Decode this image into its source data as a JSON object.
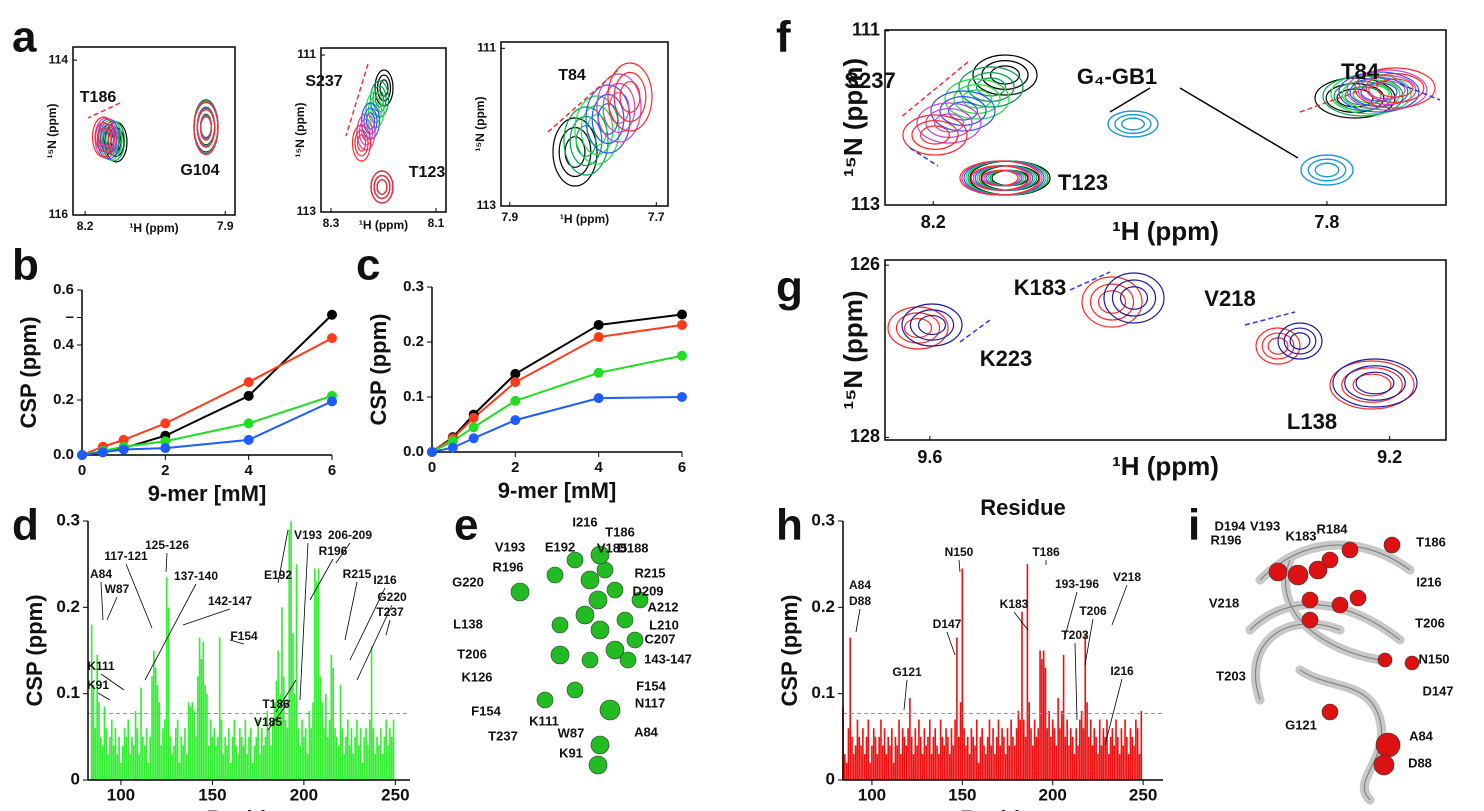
{
  "chart_data": [
    {
      "type": "spectrum",
      "panel_label": "a",
      "xlabel": "¹H (ppm)",
      "ylabel": "¹⁵N (ppm)",
      "xlim": [
        8.226,
        7.879
      ],
      "ylim": [
        116,
        113.83
      ],
      "xticks": [
        8.2,
        7.9
      ],
      "yticks": [
        114,
        116
      ],
      "annotations": [
        "T186",
        "G104"
      ]
    },
    {
      "type": "spectrum",
      "xlabel": "¹H (ppm)",
      "ylabel": "¹⁵N (ppm)",
      "xlim": [
        8.319,
        8.081
      ],
      "ylim": [
        113,
        110.91
      ],
      "xticks": [
        8.3,
        8.1
      ],
      "yticks": [
        111,
        113
      ],
      "annotations": [
        "S237",
        "T123"
      ]
    },
    {
      "type": "spectrum",
      "xlabel": "¹H (ppm)",
      "ylabel": "¹⁵N (ppm)",
      "xlim": [
        7.912,
        7.684
      ],
      "ylim": [
        113,
        110.92
      ],
      "xticks": [
        7.9,
        7.7
      ],
      "yticks": [
        111,
        113
      ],
      "annotations": [
        "T84"
      ]
    },
    {
      "type": "scatter",
      "panel_label": "b",
      "xlabel": "9-mer [mM]",
      "ylabel": "CSP (ppm)",
      "x": [
        0,
        0.5,
        1,
        2,
        4,
        6
      ],
      "xlim": [
        0,
        6
      ],
      "ylim": [
        0,
        0.6
      ],
      "xticks": [
        0,
        2,
        4,
        6
      ],
      "yticks": [
        {
          "value": 0,
          "label": "0.0"
        },
        0.2,
        0.4,
        {
          "value": 0.5,
          "label": "–"
        },
        0.6
      ],
      "series": [
        {
          "color": "#000000",
          "values": [
            0,
            0.01,
            0.025,
            0.07,
            0.215,
            0.51
          ]
        },
        {
          "color": "#ff3a1a",
          "values": [
            0,
            0.03,
            0.055,
            0.115,
            0.265,
            0.425
          ]
        },
        {
          "color": "#22dd22",
          "values": [
            0,
            0.015,
            0.03,
            0.05,
            0.115,
            0.215
          ]
        },
        {
          "color": "#1f5cff",
          "values": [
            0,
            0.01,
            0.02,
            0.025,
            0.055,
            0.195
          ]
        }
      ]
    },
    {
      "type": "scatter",
      "panel_label": "c",
      "xlabel": "9-mer [mM]",
      "ylabel": "CSP (ppm)",
      "x": [
        0,
        0.5,
        1,
        2,
        4,
        6
      ],
      "xlim": [
        0,
        6
      ],
      "ylim": [
        0,
        0.3
      ],
      "xticks": [
        0,
        2,
        4,
        6
      ],
      "yticks": [
        {
          "value": 0,
          "label": "0.0"
        },
        0.1,
        0.2,
        0.3
      ],
      "series": [
        {
          "color": "#000000",
          "values": [
            0,
            0.027,
            0.068,
            0.142,
            0.231,
            0.25
          ]
        },
        {
          "color": "#ff3a1a",
          "values": [
            0,
            0.025,
            0.062,
            0.127,
            0.209,
            0.231
          ]
        },
        {
          "color": "#22dd22",
          "values": [
            0,
            0.02,
            0.045,
            0.093,
            0.144,
            0.175
          ]
        },
        {
          "color": "#1f5cff",
          "values": [
            0,
            0.008,
            0.025,
            0.058,
            0.098,
            0.1
          ]
        }
      ]
    },
    {
      "type": "bar",
      "panel_label": "d",
      "xlabel": "Residue",
      "ylabel": "CSP (ppm)",
      "color": "#33ee33",
      "xlim": [
        82,
        258
      ],
      "ylim": [
        0,
        0.3
      ],
      "xticks": [
        100,
        150,
        200,
        250
      ],
      "yticks": [
        0,
        0.1,
        0.2,
        0.3
      ],
      "threshold": 0.077,
      "x": [
        84,
        85,
        86,
        87,
        88,
        89,
        90,
        91,
        92,
        93,
        94,
        95,
        96,
        97,
        98,
        99,
        100,
        101,
        102,
        103,
        104,
        105,
        106,
        107,
        108,
        109,
        110,
        111,
        112,
        113,
        114,
        115,
        116,
        117,
        118,
        119,
        120,
        121,
        122,
        123,
        124,
        125,
        126,
        127,
        128,
        129,
        130,
        131,
        132,
        133,
        134,
        135,
        136,
        137,
        138,
        139,
        140,
        141,
        142,
        143,
        144,
        145,
        146,
        147,
        148,
        149,
        150,
        151,
        152,
        153,
        154,
        155,
        156,
        157,
        158,
        159,
        160,
        161,
        162,
        163,
        164,
        165,
        166,
        167,
        168,
        169,
        170,
        171,
        172,
        173,
        174,
        175,
        176,
        177,
        178,
        179,
        180,
        181,
        182,
        183,
        184,
        185,
        186,
        187,
        188,
        189,
        190,
        191,
        192,
        193,
        194,
        195,
        196,
        197,
        198,
        199,
        200,
        201,
        202,
        203,
        204,
        205,
        206,
        207,
        208,
        209,
        210,
        211,
        212,
        213,
        214,
        215,
        216,
        217,
        218,
        219,
        220,
        221,
        222,
        223,
        224,
        225,
        226,
        227,
        228,
        229,
        230,
        231,
        232,
        233,
        234,
        235,
        236,
        237,
        238,
        239,
        240,
        241,
        242,
        243,
        244,
        245,
        246,
        247,
        248,
        249
      ],
      "values": [
        0.18,
        0.11,
        0.06,
        0.145,
        0.09,
        0.05,
        0.04,
        0.085,
        0.06,
        0.03,
        0.05,
        0.07,
        0.04,
        0.06,
        0.03,
        0.05,
        0.02,
        0.04,
        0.06,
        0.05,
        0.07,
        0.03,
        0.05,
        0.04,
        0.08,
        0.06,
        0.03,
        0.107,
        0.05,
        0.04,
        0.06,
        0.02,
        0.05,
        0.12,
        0.15,
        0.13,
        0.11,
        0.09,
        0.04,
        0.06,
        0.07,
        0.235,
        0.2,
        0.05,
        0.03,
        0.04,
        0.06,
        0.07,
        0.02,
        0.05,
        0.04,
        0.06,
        0.03,
        0.09,
        0.085,
        0.09,
        0.08,
        0.05,
        0.12,
        0.165,
        0.14,
        0.16,
        0.11,
        0.1,
        0.04,
        0.07,
        0.05,
        0.06,
        0.04,
        0.05,
        0.165,
        0.07,
        0.03,
        0.05,
        0.04,
        0.06,
        0.02,
        0.05,
        0.07,
        0.04,
        0.03,
        0.06,
        0.05,
        0.04,
        0.07,
        0.03,
        0.05,
        0.06,
        0.02,
        0.04,
        0.05,
        0.07,
        0.03,
        0.06,
        0.04,
        0.05,
        0.08,
        0.06,
        0.04,
        0.07,
        0.09,
        0.115,
        0.15,
        0.1,
        0.2,
        0.12,
        0.07,
        0.06,
        0.29,
        0.3,
        0.17,
        0.1,
        0.25,
        0.06,
        0.04,
        0.07,
        0.05,
        0.06,
        0.03,
        0.08,
        0.06,
        0.09,
        0.245,
        0.23,
        0.245,
        0.12,
        0.09,
        0.06,
        0.1,
        0.05,
        0.07,
        0.145,
        0.13,
        0.06,
        0.05,
        0.04,
        0.11,
        0.06,
        0.03,
        0.05,
        0.07,
        0.04,
        0.06,
        0.03,
        0.05,
        0.07,
        0.04,
        0.06,
        0.02,
        0.05,
        0.06,
        0.04,
        0.07,
        0.155,
        0.06,
        0.03,
        0.05,
        0.04,
        0.06,
        0.03,
        0.05,
        0.07,
        0.04,
        0.06,
        0.05,
        0.07
      ],
      "annotations": [
        "A84",
        "W87",
        "K91",
        "K111",
        "117-121",
        "125-126",
        "137-140",
        "142-147",
        "F154",
        "V185",
        "T186",
        "E192",
        "V193",
        "R196",
        "206-209",
        "R215",
        "I216",
        "G220",
        "T237"
      ]
    },
    {
      "type": "structure",
      "panel_label": "e",
      "annotations": [
        "I216",
        "T186",
        "V193",
        "E192",
        "V185",
        "D188",
        "G220",
        "R196",
        "R215",
        "D209",
        "A212",
        "L138",
        "L210",
        "C207",
        "T206",
        "143-147",
        "K126",
        "F154",
        "N117",
        "F154",
        "T237",
        "K111",
        "W87",
        "A84",
        "K91"
      ]
    },
    {
      "type": "spectrum",
      "panel_label": "f",
      "xlabel": "¹H (ppm)",
      "ylabel": "¹⁵N (ppm)",
      "xlim": [
        8.249,
        7.679
      ],
      "ylim": [
        113,
        110.99
      ],
      "xticks": [
        8.2,
        7.8
      ],
      "yticks": [
        111,
        113
      ],
      "annotations": [
        "S237",
        "G₄-GB1",
        "T84",
        "T123"
      ]
    },
    {
      "type": "spectrum",
      "panel_label": "g",
      "xlabel": "¹H (ppm)",
      "ylabel": "¹⁵N (ppm)",
      "xlim": [
        9.639,
        9.151
      ],
      "ylim": [
        128.03,
        125.94
      ],
      "xticks": [
        9.6,
        9.2
      ],
      "yticks": [
        126,
        128
      ],
      "annotations": [
        "K183",
        "V218",
        "K223",
        "L138"
      ]
    },
    {
      "type": "bar",
      "panel_label": "h",
      "title": "Residue",
      "xlabel": "Residue",
      "ylabel": "CSP (ppm)",
      "color": "#ee1111",
      "xlim": [
        84,
        261
      ],
      "ylim": [
        0,
        0.3
      ],
      "xticks": [
        100,
        150,
        200,
        250
      ],
      "yticks": [
        0,
        0.1,
        0.2,
        0.3
      ],
      "threshold": 0.077,
      "x": [
        84,
        85,
        86,
        87,
        88,
        89,
        90,
        91,
        92,
        93,
        94,
        95,
        96,
        97,
        98,
        99,
        100,
        101,
        102,
        103,
        104,
        105,
        106,
        107,
        108,
        109,
        110,
        111,
        112,
        113,
        114,
        115,
        116,
        117,
        118,
        119,
        120,
        121,
        122,
        123,
        124,
        125,
        126,
        127,
        128,
        129,
        130,
        131,
        132,
        133,
        134,
        135,
        136,
        137,
        138,
        139,
        140,
        141,
        142,
        143,
        144,
        145,
        146,
        147,
        148,
        149,
        150,
        151,
        152,
        153,
        154,
        155,
        156,
        157,
        158,
        159,
        160,
        161,
        162,
        163,
        164,
        165,
        166,
        167,
        168,
        169,
        170,
        171,
        172,
        173,
        174,
        175,
        176,
        177,
        178,
        179,
        180,
        181,
        182,
        183,
        184,
        185,
        186,
        187,
        188,
        189,
        190,
        191,
        192,
        193,
        194,
        195,
        196,
        197,
        198,
        199,
        200,
        201,
        202,
        203,
        204,
        205,
        206,
        207,
        208,
        209,
        210,
        211,
        212,
        213,
        214,
        215,
        216,
        217,
        218,
        219,
        220,
        221,
        222,
        223,
        224,
        225,
        226,
        227,
        228,
        229,
        230,
        231,
        232,
        233,
        234,
        235,
        236,
        237,
        238,
        239,
        240,
        241,
        242,
        243,
        244,
        245,
        246,
        247,
        248,
        249
      ],
      "values": [
        0.085,
        0.03,
        0.02,
        0.06,
        0.165,
        0.05,
        0.03,
        0.04,
        0.07,
        0.05,
        0.04,
        0.06,
        0.03,
        0.05,
        0.07,
        0.02,
        0.04,
        0.06,
        0.05,
        0.03,
        0.05,
        0.07,
        0.04,
        0.06,
        0.03,
        0.05,
        0.04,
        0.06,
        0.02,
        0.05,
        0.04,
        0.07,
        0.03,
        0.06,
        0.05,
        0.04,
        0.06,
        0.095,
        0.05,
        0.03,
        0.06,
        0.04,
        0.07,
        0.05,
        0.03,
        0.06,
        0.04,
        0.05,
        0.07,
        0.03,
        0.05,
        0.06,
        0.04,
        0.03,
        0.07,
        0.05,
        0.04,
        0.06,
        0.05,
        0.03,
        0.06,
        0.04,
        0.07,
        0.165,
        0.05,
        0.09,
        0.245,
        0.06,
        0.04,
        0.05,
        0.03,
        0.06,
        0.05,
        0.04,
        0.07,
        0.02,
        0.05,
        0.06,
        0.04,
        0.03,
        0.05,
        0.07,
        0.04,
        0.06,
        0.03,
        0.05,
        0.07,
        0.04,
        0.06,
        0.05,
        0.03,
        0.06,
        0.04,
        0.07,
        0.05,
        0.04,
        0.06,
        0.08,
        0.07,
        0.195,
        0.07,
        0.05,
        0.25,
        0.09,
        0.06,
        0.04,
        0.07,
        0.05,
        0.06,
        0.15,
        0.14,
        0.15,
        0.13,
        0.06,
        0.08,
        0.05,
        0.07,
        0.06,
        0.04,
        0.095,
        0.06,
        0.08,
        0.145,
        0.05,
        0.07,
        0.04,
        0.06,
        0.05,
        0.03,
        0.06,
        0.04,
        0.07,
        0.08,
        0.06,
        0.17,
        0.09,
        0.05,
        0.07,
        0.04,
        0.06,
        0.05,
        0.03,
        0.07,
        0.04,
        0.06,
        0.05,
        0.07,
        0.03,
        0.05,
        0.06,
        0.04,
        0.07,
        0.05,
        0.03,
        0.06,
        0.04,
        0.07,
        0.05,
        0.03,
        0.06,
        0.05,
        0.04,
        0.07,
        0.06,
        0.03,
        0.08
      ],
      "annotations": [
        "A84",
        "D88",
        "G121",
        "D147",
        "N150",
        "K183",
        "T186",
        "193-196",
        "T203",
        "T206",
        "V218",
        "I216"
      ]
    },
    {
      "type": "structure",
      "panel_label": "i",
      "annotations": [
        "D194",
        "V193",
        "K183",
        "R184",
        "T186",
        "R196",
        "I216",
        "V218",
        "T206",
        "N150",
        "T203",
        "D147",
        "G121",
        "A84",
        "D88"
      ]
    }
  ]
}
